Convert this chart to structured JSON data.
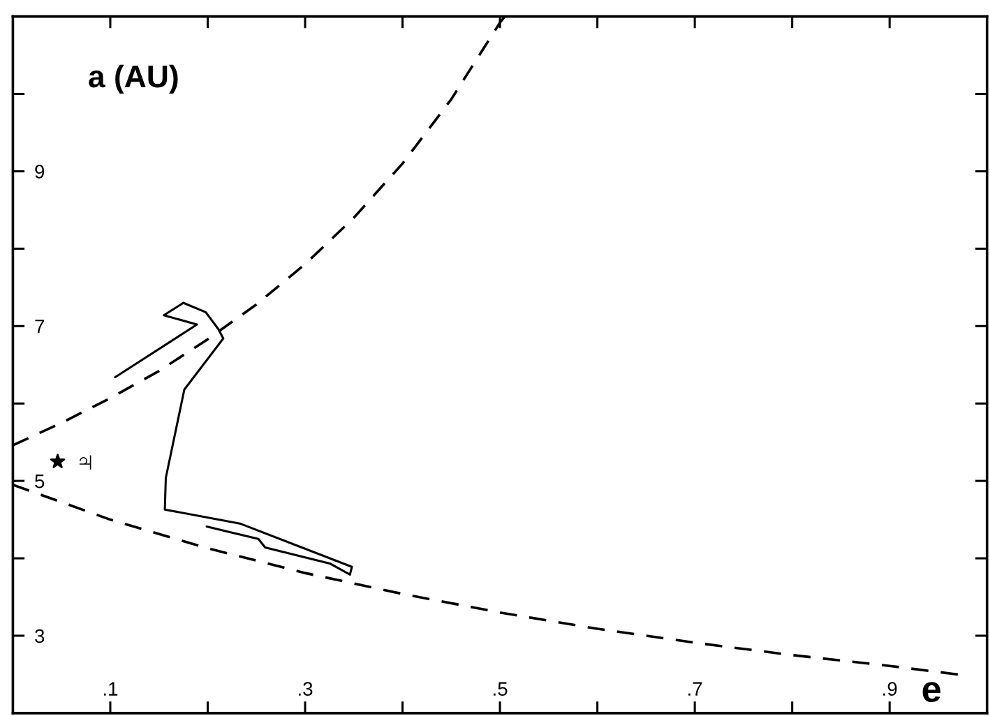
{
  "chart_data": {
    "type": "line",
    "xlabel": "e",
    "ylabel": "a (AU)",
    "xlim": [
      0,
      1
    ],
    "ylim": [
      2,
      11
    ],
    "xticks": [
      {
        "value": 0.1,
        "label": ".1"
      },
      {
        "value": 0.2,
        "label": null
      },
      {
        "value": 0.3,
        "label": ".3"
      },
      {
        "value": 0.4,
        "label": null
      },
      {
        "value": 0.5,
        "label": ".5"
      },
      {
        "value": 0.6,
        "label": null
      },
      {
        "value": 0.7,
        "label": ".7"
      },
      {
        "value": 0.8,
        "label": null
      },
      {
        "value": 0.9,
        "label": ".9"
      }
    ],
    "yticks": [
      3,
      {
        "value": 4,
        "label": null
      },
      5,
      {
        "value": 6,
        "label": null
      },
      7,
      {
        "value": 8,
        "label": null
      },
      9,
      {
        "value": 10,
        "label": null
      }
    ],
    "series": [
      {
        "line_style": "dashed",
        "color": "#000000",
        "x": [
          0,
          0.05,
          0.1,
          0.15,
          0.2,
          0.25,
          0.3,
          0.35,
          0.4,
          0.45,
          0.5,
          0.505
        ],
        "values": [
          5.46,
          5.75,
          6.07,
          6.42,
          6.83,
          7.28,
          7.8,
          8.4,
          9.1,
          9.93,
          10.92,
          11.0
        ]
      },
      {
        "line_style": "dashed",
        "color": "#000000",
        "x": [
          0,
          0.1,
          0.2,
          0.3,
          0.4,
          0.5,
          0.6,
          0.7,
          0.8,
          0.9,
          0.97
        ],
        "values": [
          4.95,
          4.5,
          4.13,
          3.81,
          3.54,
          3.3,
          3.09,
          2.91,
          2.75,
          2.61,
          2.5
        ]
      },
      {
        "line_style": "solid",
        "color": "#000000",
        "x": [
          0.105,
          0.189,
          0.155,
          0.175,
          0.198,
          0.211,
          0.216,
          0.176,
          0.157,
          0.156,
          0.233,
          0.348,
          0.346,
          0.326,
          0.259,
          0.252,
          0.199
        ],
        "values": [
          6.34,
          7.02,
          7.14,
          7.3,
          7.18,
          6.96,
          6.84,
          6.18,
          5.04,
          4.63,
          4.45,
          3.89,
          3.79,
          3.93,
          4.14,
          4.25,
          4.41
        ]
      },
      {
        "type": "scatter",
        "marker": "star",
        "color": "#000000",
        "x": [
          0.046
        ],
        "values": [
          5.25
        ]
      }
    ],
    "annotations": [
      {
        "text": "♃",
        "x": 0.046,
        "y": 5.25
      }
    ]
  }
}
